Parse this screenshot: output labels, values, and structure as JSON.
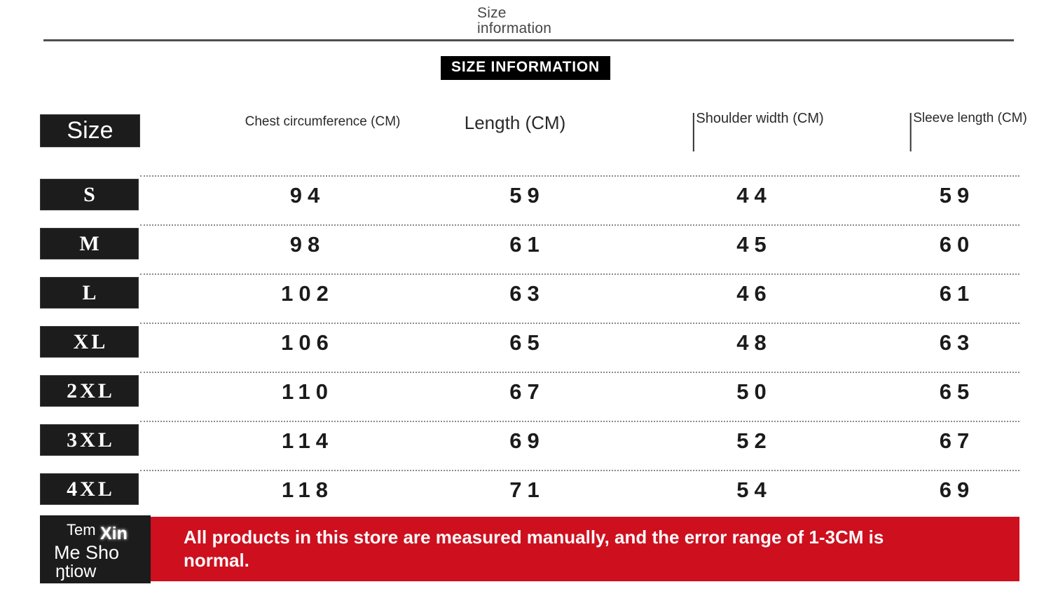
{
  "page": {
    "title_line1": "Size",
    "title_line2": "information",
    "badge": "SIZE INFORMATION"
  },
  "table": {
    "header": {
      "size_label": "Size",
      "columns": [
        "Chest circumference (CM)",
        "Length (CM)",
        "Shoulder width (CM)",
        "Sleeve length (CM)"
      ]
    },
    "rows": [
      {
        "label": "S",
        "values": [
          "94",
          "59",
          "44",
          "59"
        ]
      },
      {
        "label": "M",
        "values": [
          "98",
          "61",
          "45",
          "60"
        ]
      },
      {
        "label": "L",
        "values": [
          "102",
          "63",
          "46",
          "61"
        ]
      },
      {
        "label": "XL",
        "values": [
          "106",
          "65",
          "48",
          "63"
        ]
      },
      {
        "label": "2XL",
        "values": [
          "110",
          "67",
          "50",
          "65"
        ]
      },
      {
        "label": "3XL",
        "values": [
          "114",
          "69",
          "52",
          "67"
        ]
      },
      {
        "label": "4XL",
        "values": [
          "118",
          "71",
          "54",
          "69"
        ]
      }
    ]
  },
  "note": {
    "box_line1a": "Tem",
    "box_line1b": "Xin",
    "box_line2": "Me Sho",
    "box_line3": "ŋtiow",
    "banner_text": "All products in this store are measured manually, and the error range of 1-3CM is normal."
  },
  "colors": {
    "box_black": "#1c1c1c",
    "banner_red": "#ce0f1e"
  }
}
